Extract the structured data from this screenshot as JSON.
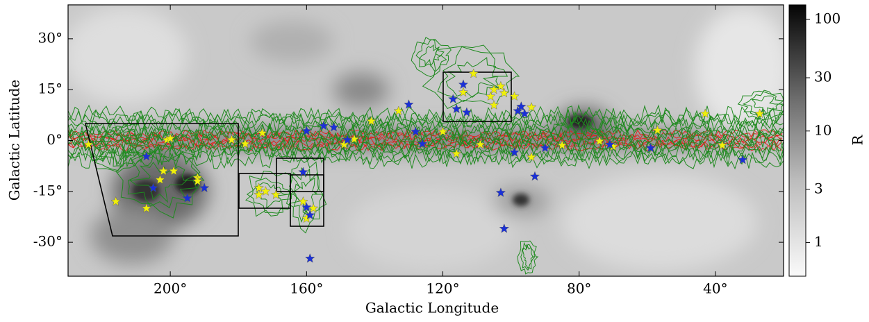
{
  "chart_data": {
    "type": "scatter",
    "xlabel": "Galactic Longitude",
    "ylabel": "Galactic Latitude",
    "xlim": [
      230,
      20
    ],
    "ylim": [
      -40,
      40
    ],
    "xticks": [
      {
        "value": 200,
        "label": "200°"
      },
      {
        "value": 160,
        "label": "160°"
      },
      {
        "value": 120,
        "label": "120°"
      },
      {
        "value": 80,
        "label": "80°"
      },
      {
        "value": 40,
        "label": "40°"
      }
    ],
    "yticks": [
      {
        "value": 30,
        "label": "30°"
      },
      {
        "value": 15,
        "label": "15°"
      },
      {
        "value": 0,
        "label": "0°"
      },
      {
        "value": -15,
        "label": "-15°"
      },
      {
        "value": -30,
        "label": "-30°"
      }
    ],
    "colorbar": {
      "label": "R",
      "scale": "log",
      "lim": [
        0.5,
        135
      ],
      "ticks": [
        100,
        30,
        10,
        3,
        1
      ]
    },
    "series": [
      {
        "color": "#f0f00a",
        "x": [
          224,
          201,
          200,
          173,
          182,
          178,
          202,
          199,
          203,
          192,
          192,
          216,
          207,
          174,
          174,
          172,
          169,
          161,
          158,
          160,
          141,
          149,
          146,
          133,
          120,
          116,
          114,
          111,
          109,
          106,
          105,
          103,
          102,
          105,
          99,
          94,
          94,
          85,
          74,
          70,
          57,
          43,
          38,
          27
        ],
        "y": [
          -1.2,
          0.2,
          0.6,
          2.2,
          0.2,
          -1,
          -9,
          -9,
          -11.6,
          -11,
          -12,
          -18,
          -20,
          -14,
          -16,
          -15,
          -16,
          -18,
          -20,
          -23,
          5.7,
          -1.2,
          0.4,
          8.7,
          2.6,
          -3.9,
          14.2,
          19.7,
          -1.2,
          13,
          15,
          16,
          14,
          10.4,
          13,
          9.8,
          -4.9,
          -1.4,
          -0.2,
          -1.8,
          3,
          7.9,
          -1.4,
          7.9
        ]
      },
      {
        "color": "#1a30d8",
        "x": [
          207,
          205,
          195,
          190,
          160,
          155,
          152,
          148,
          161,
          160,
          159,
          159,
          130,
          128,
          126,
          117,
          116,
          114,
          113,
          99,
          98,
          97,
          96,
          93,
          90,
          103,
          102,
          71,
          59,
          32
        ],
        "y": [
          -4.7,
          -14,
          -17,
          -14,
          2.8,
          4.3,
          3.9,
          0.2,
          -9.3,
          -19.7,
          -22,
          -34.8,
          10.6,
          2.6,
          -1,
          12.2,
          9.3,
          16.5,
          8.3,
          -3.5,
          8.7,
          10,
          7.9,
          -10.6,
          -2.2,
          -15.4,
          -26,
          -1.2,
          -2.2,
          -5.7
        ]
      }
    ]
  }
}
